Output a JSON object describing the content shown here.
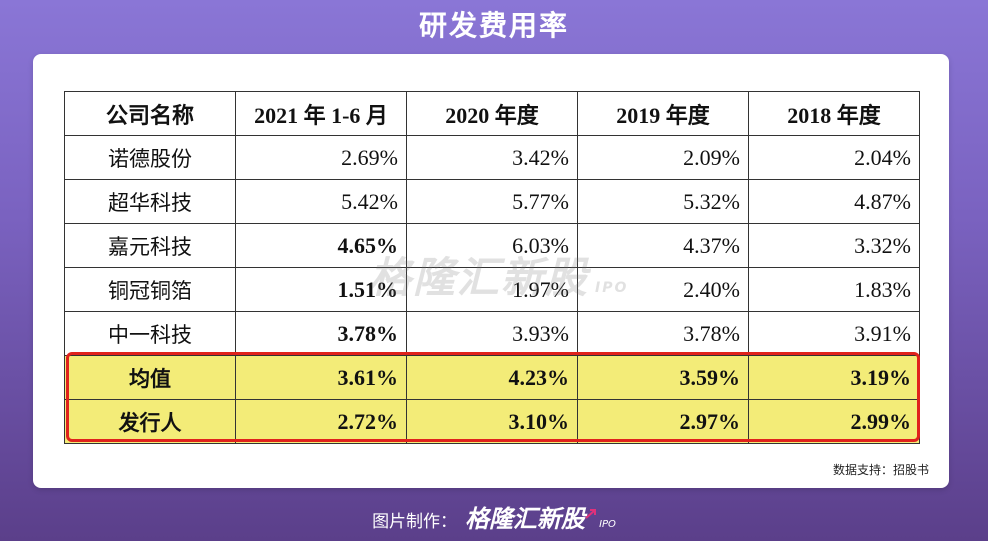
{
  "title": "研发费用率",
  "table": {
    "headers": [
      "公司名称",
      "2021 年 1-6 月",
      "2020 年度",
      "2019 年度",
      "2018 年度"
    ],
    "rows": [
      {
        "name": "诺德股份",
        "values": [
          "2.69%",
          "3.42%",
          "2.09%",
          "2.04%"
        ]
      },
      {
        "name": "超华科技",
        "values": [
          "5.42%",
          "5.77%",
          "5.32%",
          "4.87%"
        ]
      },
      {
        "name": "嘉元科技",
        "values": [
          "4.65%",
          "6.03%",
          "4.37%",
          "3.32%"
        ]
      },
      {
        "name": "铜冠铜箔",
        "values": [
          "1.51%",
          "1.97%",
          "2.40%",
          "1.83%"
        ]
      },
      {
        "name": "中一科技",
        "values": [
          "3.78%",
          "3.93%",
          "3.78%",
          "3.91%"
        ]
      },
      {
        "name": "均值",
        "values": [
          "3.61%",
          "4.23%",
          "3.59%",
          "3.19%"
        ]
      },
      {
        "name": "发行人",
        "values": [
          "2.72%",
          "3.10%",
          "2.97%",
          "2.99%"
        ]
      }
    ]
  },
  "watermark": {
    "brand": "格隆汇新股",
    "tag": "IPO"
  },
  "source": "数据支持：招股书",
  "footer": {
    "label": "图片制作：",
    "brand": "格隆汇新股",
    "tag": "IPO"
  },
  "colors": {
    "highlight": "#f3ec78",
    "box": "#e0221c",
    "accent": "#e0317a"
  }
}
